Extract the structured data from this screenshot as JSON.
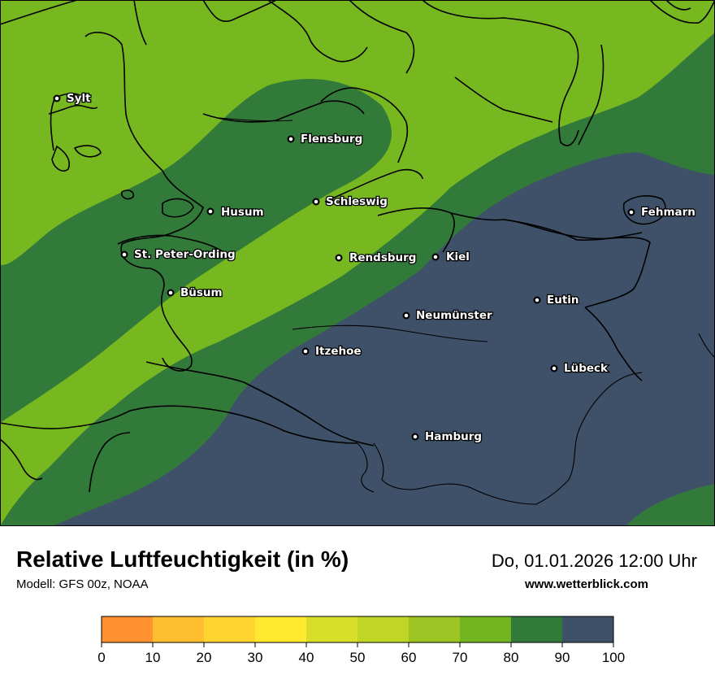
{
  "title": "Relative Luftfeuchtigkeit (in %)",
  "model": "Modell: GFS 00z, NOAA",
  "datetime": "Do, 01.01.2026 12:00 Uhr",
  "website": "www.wetterblick.com",
  "variable_unit": "%",
  "colors": {
    "band_80_90": "#327a3a",
    "band_90_100": "#3f5069",
    "band_70_80": "#77b820",
    "coastline": "#000000",
    "border": "#000000"
  },
  "cities": [
    {
      "name": "Sylt"
    },
    {
      "name": "Flensburg"
    },
    {
      "name": "Schleswig"
    },
    {
      "name": "Husum"
    },
    {
      "name": "Fehmarn"
    },
    {
      "name": "St. Peter-Ording"
    },
    {
      "name": "Rendsburg"
    },
    {
      "name": "Kiel"
    },
    {
      "name": "Büsum"
    },
    {
      "name": "Eutin"
    },
    {
      "name": "Neumünster"
    },
    {
      "name": "Itzehoe"
    },
    {
      "name": "Lübeck"
    },
    {
      "name": "Hamburg"
    }
  ],
  "legend": {
    "unit": "%",
    "ticks": [
      "0",
      "10",
      "20",
      "30",
      "40",
      "50",
      "60",
      "70",
      "80",
      "90",
      "100"
    ],
    "colors": [
      "#ff9130",
      "#ffbd30",
      "#ffd42e",
      "#ffe82e",
      "#d9df28",
      "#c0d626",
      "#9cc524",
      "#72b520",
      "#327a3a",
      "#3f5069"
    ]
  }
}
